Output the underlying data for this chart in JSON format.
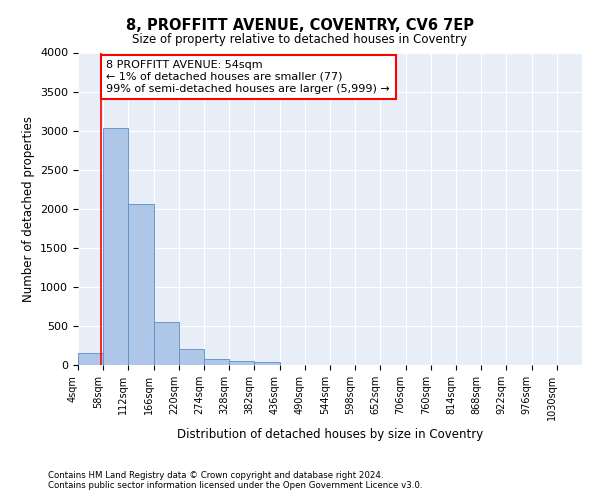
{
  "title": "8, PROFFITT AVENUE, COVENTRY, CV6 7EP",
  "subtitle": "Size of property relative to detached houses in Coventry",
  "xlabel": "Distribution of detached houses by size in Coventry",
  "ylabel": "Number of detached properties",
  "bar_color": "#aec6e8",
  "bar_edge_color": "#5b8ec4",
  "background_color": "#e8eef8",
  "annotation_text": "8 PROFFITT AVENUE: 54sqm\n← 1% of detached houses are smaller (77)\n99% of semi-detached houses are larger (5,999) →",
  "annotation_box_color": "white",
  "annotation_box_edge": "red",
  "property_line_x": 54,
  "property_line_color": "red",
  "bins": [
    4,
    58,
    112,
    166,
    220,
    274,
    328,
    382,
    436,
    490,
    544,
    598,
    652,
    706,
    760,
    814,
    868,
    922,
    976,
    1030,
    1084
  ],
  "counts": [
    150,
    3040,
    2060,
    550,
    200,
    75,
    55,
    35,
    0,
    0,
    0,
    0,
    0,
    0,
    0,
    0,
    0,
    0,
    0,
    0
  ],
  "ylim": [
    0,
    4000
  ],
  "yticks": [
    0,
    500,
    1000,
    1500,
    2000,
    2500,
    3000,
    3500,
    4000
  ],
  "footer_line1": "Contains HM Land Registry data © Crown copyright and database right 2024.",
  "footer_line2": "Contains public sector information licensed under the Open Government Licence v3.0."
}
